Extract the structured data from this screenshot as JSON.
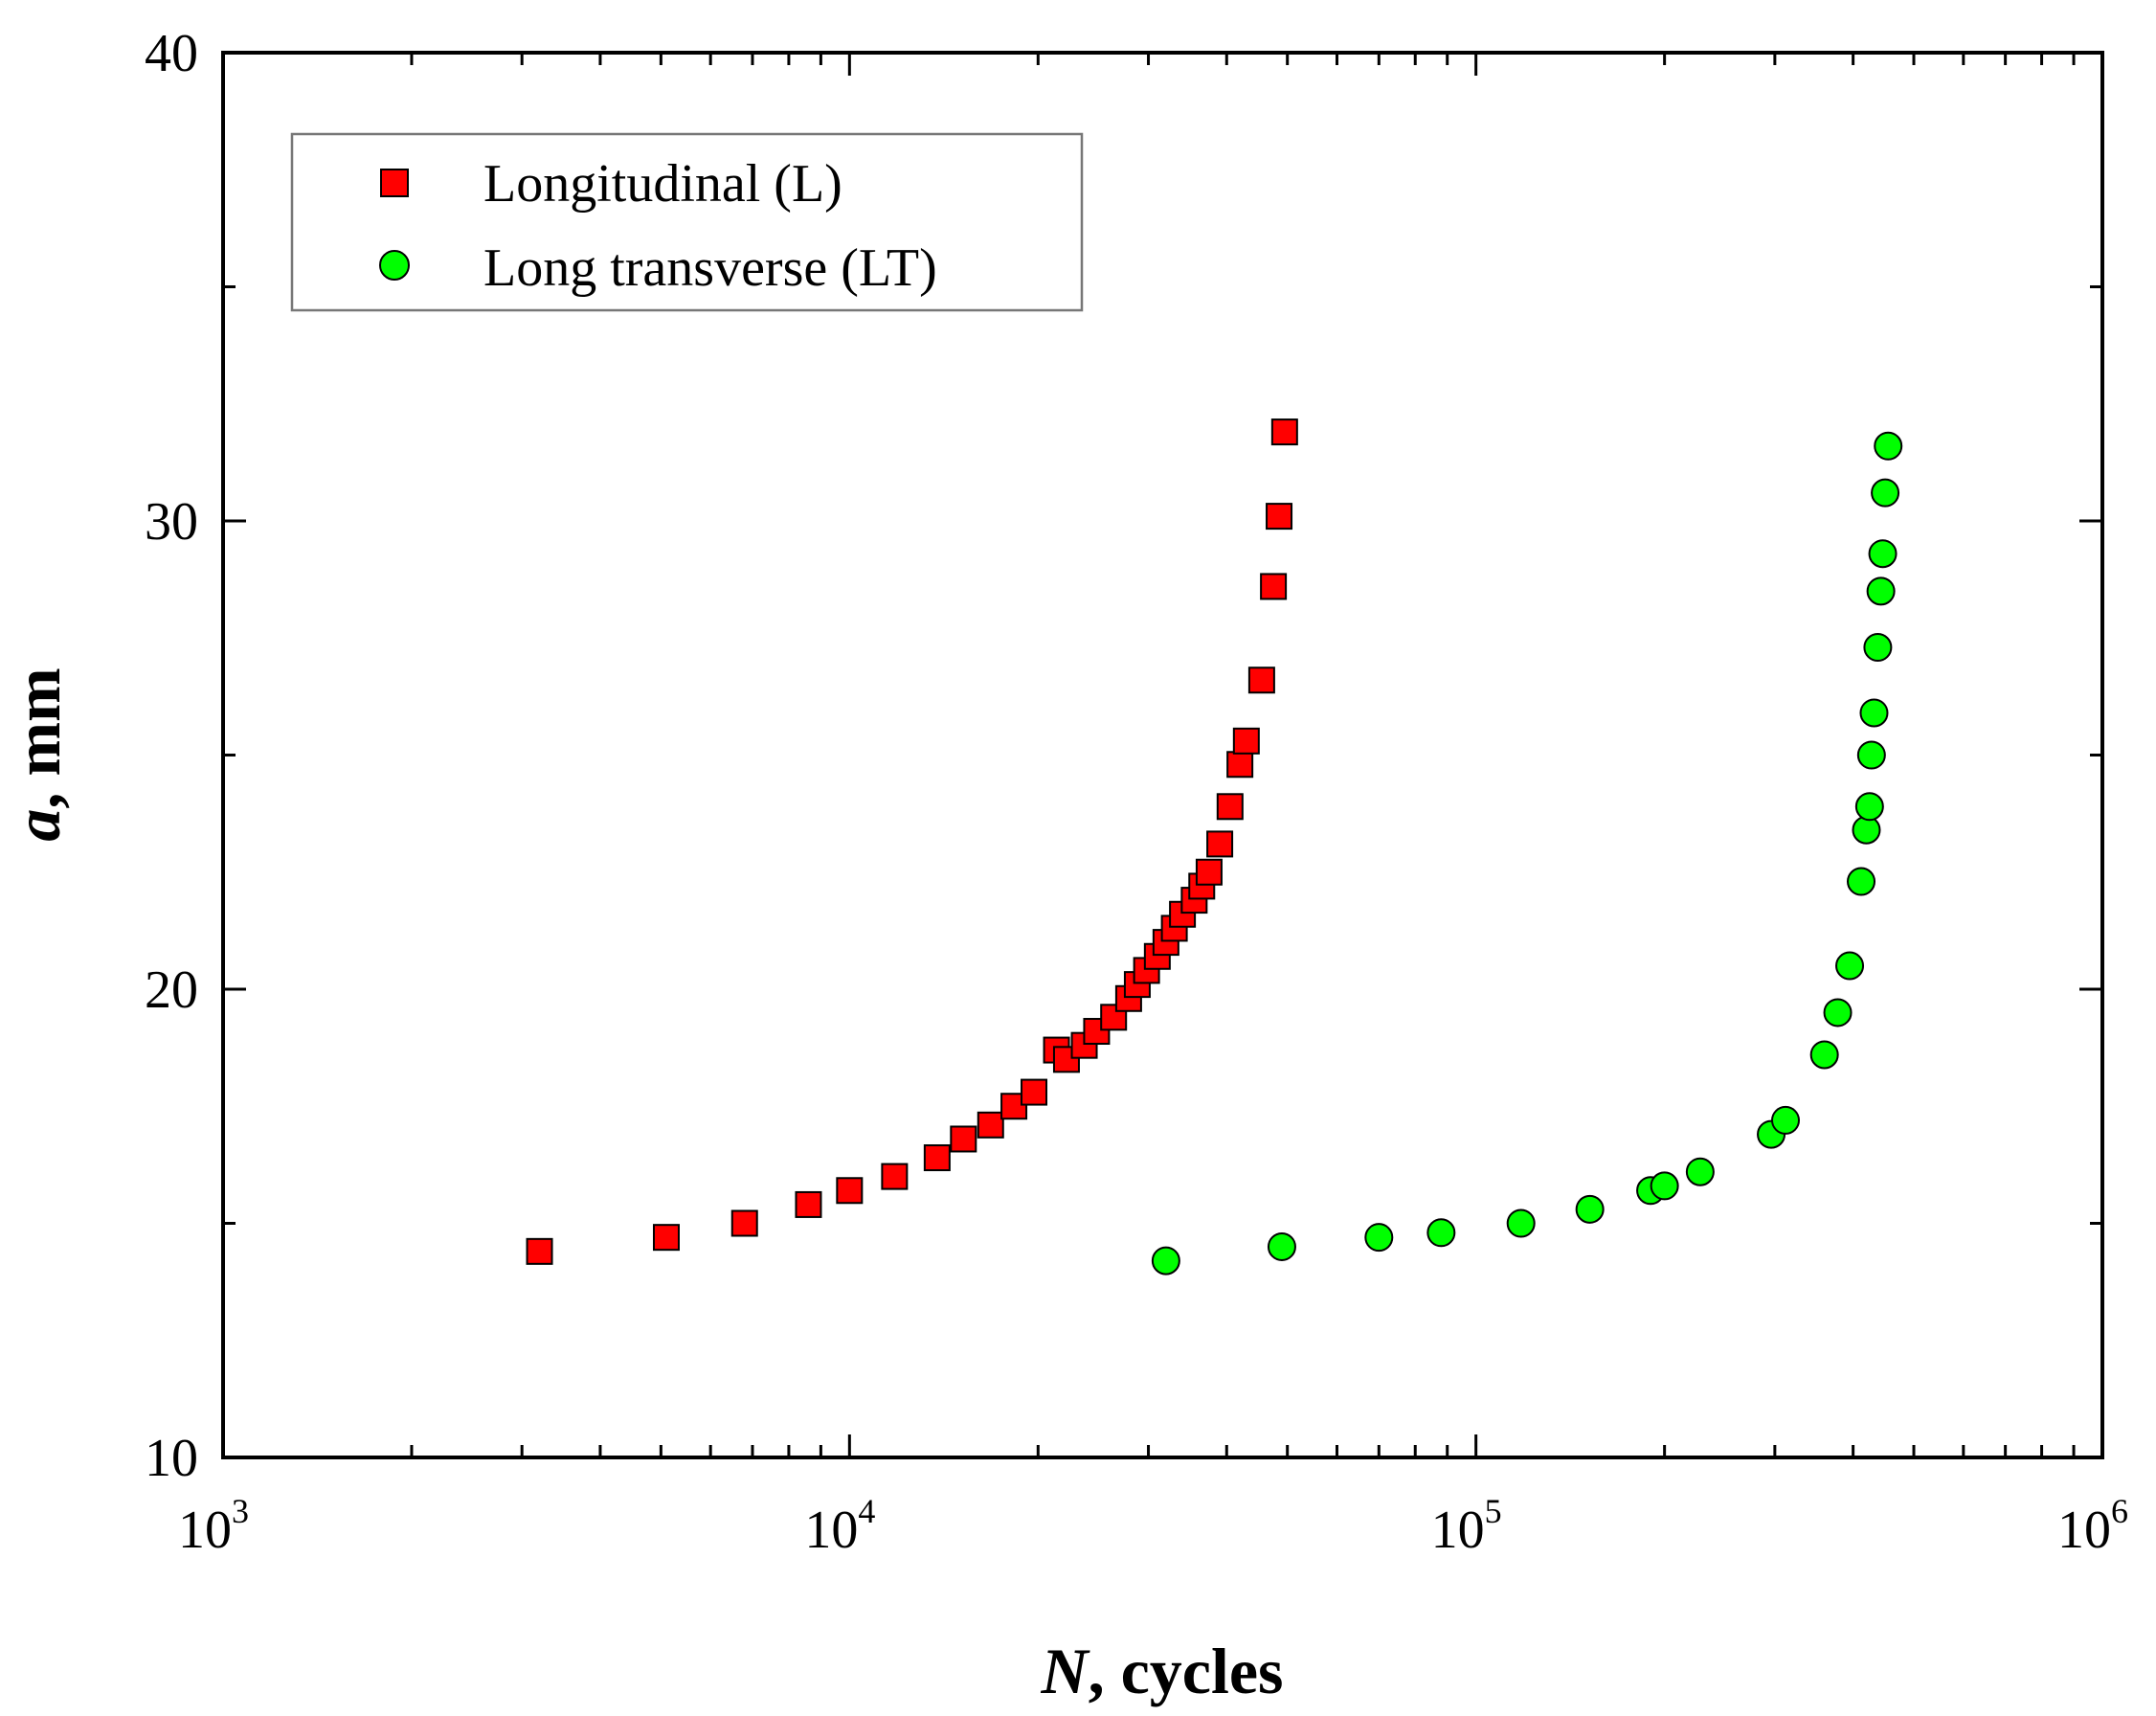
{
  "chart_data": {
    "type": "scatter",
    "xlabel": {
      "italic": "N",
      "rest": ", cycles"
    },
    "ylabel": {
      "italic": "a",
      "rest": ", mm"
    },
    "x_scale": "log",
    "xlim": [
      1000,
      1000000
    ],
    "ylim": [
      10,
      40
    ],
    "x_ticks": [
      {
        "value": 1000,
        "base": "10",
        "exp": "3"
      },
      {
        "value": 10000,
        "base": "10",
        "exp": "4"
      },
      {
        "value": 100000,
        "base": "10",
        "exp": "5"
      },
      {
        "value": 1000000,
        "base": "10",
        "exp": "6"
      }
    ],
    "y_ticks": [
      10,
      20,
      30,
      40
    ],
    "y_minor_ticks": [
      15,
      25,
      35
    ],
    "grid": false,
    "legend_position": "top-left",
    "series": [
      {
        "name": "Longitudinal (L)",
        "marker": "square",
        "color": "#ff0000",
        "points": [
          [
            3200,
            14.4
          ],
          [
            5100,
            14.7
          ],
          [
            6800,
            15.0
          ],
          [
            8600,
            15.4
          ],
          [
            10000,
            15.7
          ],
          [
            11800,
            16.0
          ],
          [
            13800,
            16.4
          ],
          [
            15200,
            16.8
          ],
          [
            16800,
            17.1
          ],
          [
            18300,
            17.5
          ],
          [
            19700,
            17.8
          ],
          [
            21400,
            18.7
          ],
          [
            22200,
            18.5
          ],
          [
            23700,
            18.8
          ],
          [
            24800,
            19.1
          ],
          [
            26400,
            19.4
          ],
          [
            27900,
            19.8
          ],
          [
            28800,
            20.1
          ],
          [
            29800,
            20.4
          ],
          [
            31000,
            20.7
          ],
          [
            32000,
            21.0
          ],
          [
            33000,
            21.3
          ],
          [
            34000,
            21.6
          ],
          [
            35500,
            21.9
          ],
          [
            36500,
            22.2
          ],
          [
            37500,
            22.5
          ],
          [
            39000,
            23.1
          ],
          [
            40500,
            23.9
          ],
          [
            42000,
            24.8
          ],
          [
            43000,
            25.3
          ],
          [
            45500,
            26.6
          ],
          [
            47500,
            28.6
          ],
          [
            48500,
            30.1
          ],
          [
            49500,
            31.9
          ]
        ]
      },
      {
        "name": "Long transverse (LT)",
        "marker": "circle",
        "color": "#00ff00",
        "points": [
          [
            32000,
            14.2
          ],
          [
            49000,
            14.5
          ],
          [
            70000,
            14.7
          ],
          [
            88000,
            14.8
          ],
          [
            118000,
            15.0
          ],
          [
            152000,
            15.3
          ],
          [
            190000,
            15.7
          ],
          [
            200000,
            15.8
          ],
          [
            228000,
            16.1
          ],
          [
            296000,
            16.9
          ],
          [
            312000,
            17.2
          ],
          [
            360000,
            18.6
          ],
          [
            378000,
            19.5
          ],
          [
            395000,
            20.5
          ],
          [
            412000,
            22.3
          ],
          [
            420000,
            23.4
          ],
          [
            425000,
            23.9
          ],
          [
            428000,
            25.0
          ],
          [
            432000,
            25.9
          ],
          [
            438000,
            27.3
          ],
          [
            443000,
            28.5
          ],
          [
            446000,
            29.3
          ],
          [
            450000,
            30.6
          ],
          [
            455000,
            31.6
          ]
        ]
      }
    ]
  }
}
